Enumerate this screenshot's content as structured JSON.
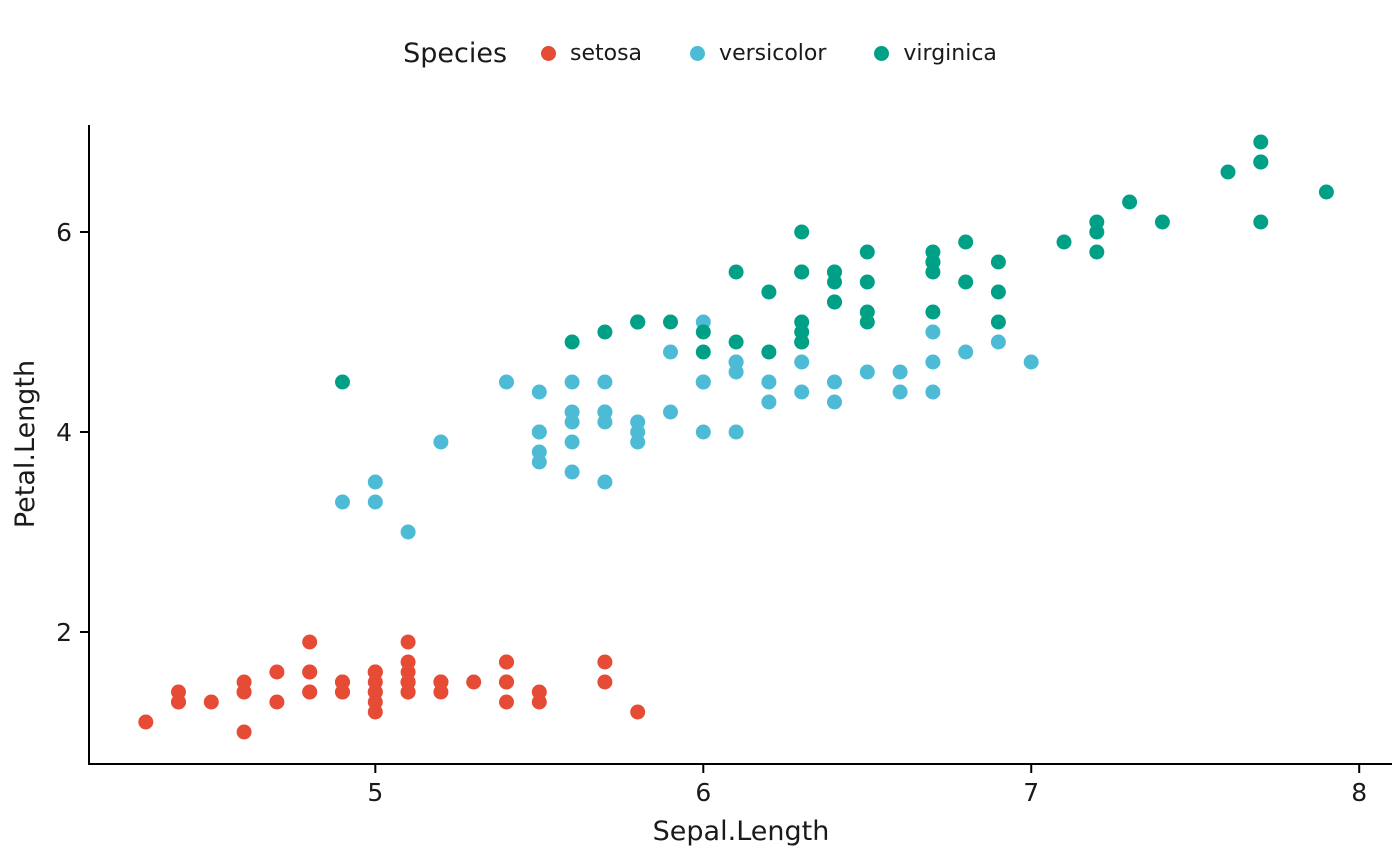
{
  "chart_data": {
    "type": "scatter",
    "title": "",
    "legend_title": "Species",
    "legend_position": "top",
    "xlabel": "Sepal.Length",
    "ylabel": "Petal.Length",
    "xlim": [
      4.13,
      8.1
    ],
    "ylim": [
      0.69,
      7.07
    ],
    "x_ticks": [
      5,
      6,
      7,
      8
    ],
    "y_ticks": [
      2,
      4,
      6
    ],
    "grid": false,
    "axis_color": "#000000",
    "text_color": "#1a1a1a",
    "point_radius": 7.5,
    "series": [
      {
        "name": "setosa",
        "color": "#E64B35",
        "x": [
          5.1,
          4.9,
          4.7,
          4.6,
          5.0,
          5.4,
          4.6,
          5.0,
          4.4,
          4.9,
          5.4,
          4.8,
          4.8,
          4.3,
          5.8,
          5.7,
          5.4,
          5.1,
          5.7,
          5.1,
          5.4,
          5.1,
          4.6,
          5.1,
          4.8,
          5.0,
          5.0,
          5.2,
          5.2,
          4.7,
          4.8,
          5.4,
          5.2,
          5.5,
          4.9,
          5.0,
          5.5,
          4.9,
          4.4,
          5.1,
          5.0,
          4.5,
          4.4,
          5.0,
          5.1,
          4.8,
          5.1,
          4.6,
          5.3,
          5.0
        ],
        "y": [
          1.4,
          1.4,
          1.3,
          1.5,
          1.4,
          1.7,
          1.4,
          1.5,
          1.4,
          1.5,
          1.5,
          1.6,
          1.4,
          1.1,
          1.2,
          1.5,
          1.3,
          1.4,
          1.7,
          1.5,
          1.7,
          1.5,
          1.0,
          1.7,
          1.9,
          1.6,
          1.6,
          1.5,
          1.4,
          1.6,
          1.6,
          1.5,
          1.5,
          1.4,
          1.5,
          1.2,
          1.3,
          1.4,
          1.3,
          1.5,
          1.3,
          1.3,
          1.3,
          1.6,
          1.9,
          1.4,
          1.6,
          1.4,
          1.5,
          1.4
        ]
      },
      {
        "name": "versicolor",
        "color": "#4DBBD5",
        "x": [
          7.0,
          6.4,
          6.9,
          5.5,
          6.5,
          5.7,
          6.3,
          4.9,
          6.6,
          5.2,
          5.0,
          5.9,
          6.0,
          6.1,
          5.6,
          6.7,
          5.6,
          5.8,
          6.2,
          5.6,
          5.9,
          6.1,
          6.3,
          6.1,
          6.4,
          6.6,
          6.8,
          6.7,
          6.0,
          5.7,
          5.5,
          5.5,
          5.8,
          6.0,
          5.4,
          6.0,
          6.7,
          6.3,
          5.6,
          5.5,
          5.5,
          6.1,
          5.8,
          5.0,
          5.6,
          5.7,
          5.7,
          6.2,
          5.1,
          5.7
        ],
        "y": [
          4.7,
          4.5,
          4.9,
          4.0,
          4.6,
          4.5,
          4.7,
          3.3,
          4.6,
          3.9,
          3.5,
          4.2,
          4.0,
          4.7,
          3.6,
          4.4,
          4.5,
          4.1,
          4.5,
          3.9,
          4.8,
          4.0,
          4.9,
          4.7,
          4.3,
          4.4,
          4.8,
          5.0,
          4.5,
          3.5,
          3.8,
          3.7,
          3.9,
          5.1,
          4.5,
          4.5,
          4.7,
          4.4,
          4.1,
          4.0,
          4.4,
          4.6,
          4.0,
          3.3,
          4.2,
          4.2,
          4.2,
          4.3,
          3.0,
          4.1
        ]
      },
      {
        "name": "virginica",
        "color": "#00A087",
        "x": [
          6.3,
          5.8,
          7.1,
          6.3,
          6.5,
          7.6,
          4.9,
          7.3,
          6.7,
          7.2,
          6.5,
          6.4,
          6.8,
          5.7,
          5.8,
          6.4,
          6.5,
          7.7,
          7.7,
          6.0,
          6.9,
          5.6,
          7.7,
          6.3,
          6.7,
          7.2,
          6.2,
          6.1,
          6.4,
          7.2,
          7.4,
          7.9,
          6.4,
          6.3,
          6.1,
          7.7,
          6.3,
          6.4,
          6.0,
          6.9,
          6.7,
          6.9,
          5.8,
          6.8,
          6.7,
          6.7,
          6.3,
          6.5,
          6.2,
          5.9
        ],
        "y": [
          6.0,
          5.1,
          5.9,
          5.6,
          5.8,
          6.6,
          4.5,
          6.3,
          5.8,
          6.1,
          5.1,
          5.3,
          5.5,
          5.0,
          5.1,
          5.3,
          5.5,
          6.7,
          6.9,
          5.0,
          5.7,
          4.9,
          6.7,
          4.9,
          5.7,
          6.0,
          4.8,
          4.9,
          5.6,
          5.8,
          6.1,
          6.4,
          5.6,
          5.1,
          5.6,
          6.1,
          5.6,
          5.5,
          4.8,
          5.4,
          5.6,
          5.1,
          5.1,
          5.9,
          5.7,
          5.2,
          5.0,
          5.2,
          5.4,
          5.1
        ]
      }
    ]
  }
}
